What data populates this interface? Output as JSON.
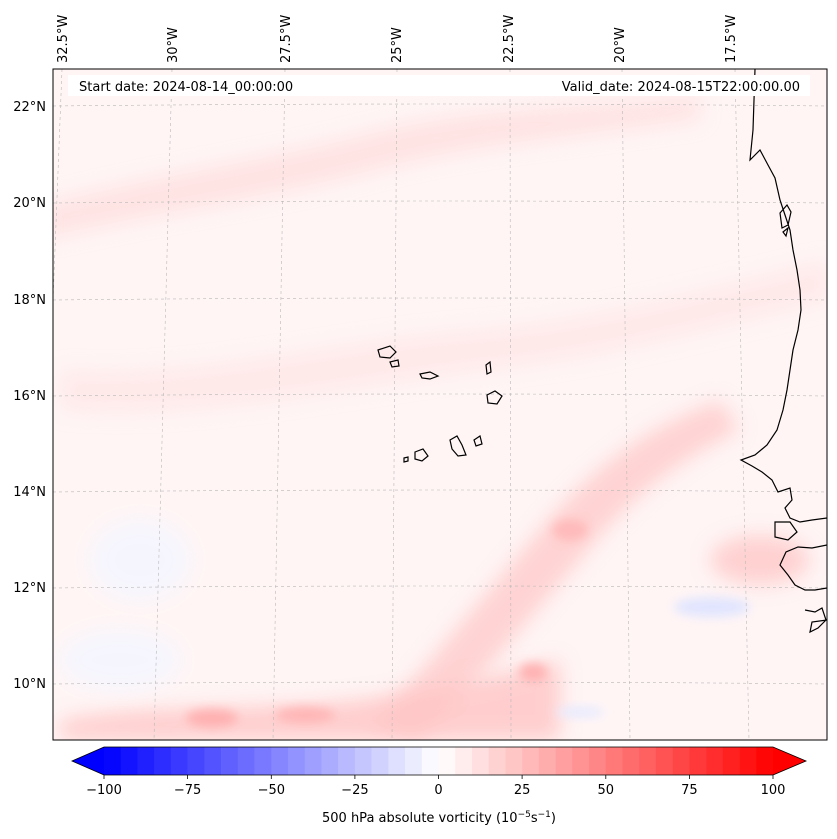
{
  "header": {
    "start_date": "Start date: 2024-08-14_00:00:00",
    "valid_date": "Valid_date: 2024-08-15T22:00:00.00"
  },
  "map": {
    "lon_labels": [
      "32.5°W",
      "30°W",
      "27.5°W",
      "25°W",
      "22.5°W",
      "20°W",
      "17.5°W"
    ],
    "lat_labels": [
      "22°N",
      "20°N",
      "18°N",
      "16°N",
      "14°N",
      "12°N",
      "10°N"
    ]
  },
  "colorbar": {
    "ticks": [
      "−100",
      "−75",
      "−50",
      "−25",
      "0",
      "25",
      "50",
      "75",
      "100"
    ],
    "label_prefix": "500 hPa absolute vorticity (10",
    "label_exp1": "−5",
    "label_mid": "s",
    "label_exp2": "−1",
    "label_suffix": ")",
    "min": -100,
    "max": 100,
    "levels": 40,
    "neg_color": "#0000ff",
    "pos_color": "#ff0000"
  }
}
